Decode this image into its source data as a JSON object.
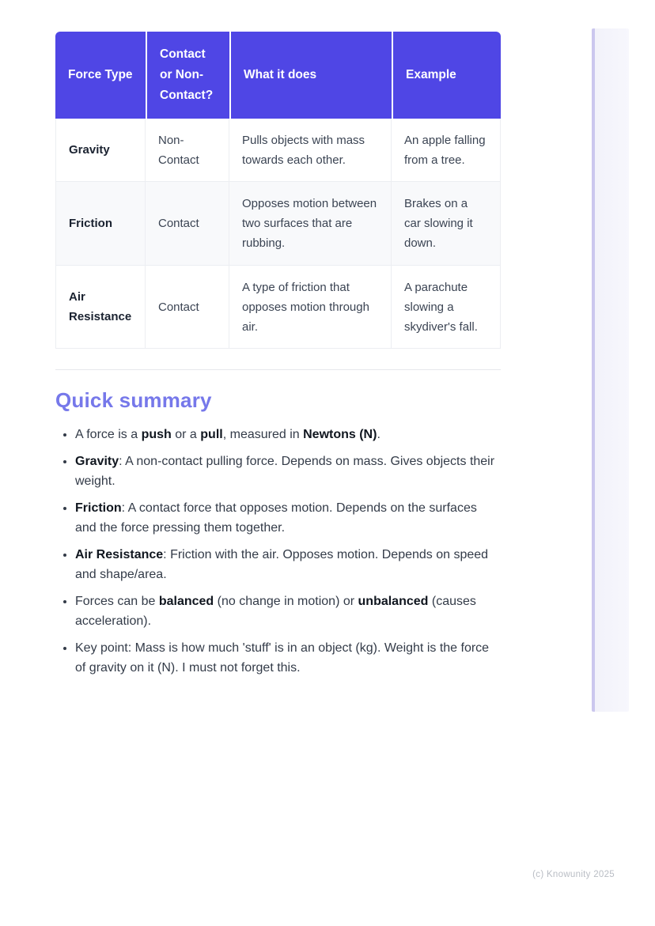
{
  "page": {
    "footer": "(c) Knowunity 2025"
  },
  "colors": {
    "table_header_bg": "#4f46e5",
    "heading_text": "#7678ea",
    "accent_panel": "#f4f4fb",
    "accent_border": "#cbc7ee",
    "shaded_row_bg": "#f8f9fb"
  },
  "table": {
    "columns": [
      "Force Type",
      "Contact or Non-Contact?",
      "What it does",
      "Example"
    ],
    "rows": [
      {
        "shaded": false,
        "cells": [
          [
            {
              "t": "Gravity",
              "b": true
            }
          ],
          [
            {
              "t": "Non-Contact"
            }
          ],
          [
            {
              "t": "Pulls objects with mass towards each other."
            }
          ],
          [
            {
              "t": "An apple falling from a tree."
            }
          ]
        ]
      },
      {
        "shaded": true,
        "cells": [
          [
            {
              "t": "Friction",
              "b": true
            }
          ],
          [
            {
              "t": "Contact"
            }
          ],
          [
            {
              "t": "Opposes motion between two surfaces that are rubbing."
            }
          ],
          [
            {
              "t": "Brakes on a car slowing it down."
            }
          ]
        ]
      },
      {
        "shaded": false,
        "cells": [
          [
            {
              "t": "Air Resistance",
              "b": true
            }
          ],
          [
            {
              "t": "Contact"
            }
          ],
          [
            {
              "t": "A type of friction that opposes motion through air."
            }
          ],
          [
            {
              "t": "A parachute slowing a skydiver's fall."
            }
          ]
        ]
      }
    ]
  },
  "summary": {
    "heading": "Quick summary",
    "bullets": [
      [
        {
          "t": "A force is a "
        },
        {
          "t": "push",
          "b": true
        },
        {
          "t": " or a "
        },
        {
          "t": "pull",
          "b": true
        },
        {
          "t": ", measured in "
        },
        {
          "t": "Newtons (N)",
          "b": true
        },
        {
          "t": "."
        }
      ],
      [
        {
          "t": "Gravity",
          "b": true
        },
        {
          "t": ": A non-contact pulling force. Depends on mass. Gives objects their weight."
        }
      ],
      [
        {
          "t": "Friction",
          "b": true
        },
        {
          "t": ": A contact force that opposes motion. Depends on the surfaces and the force pressing them together."
        }
      ],
      [
        {
          "t": "Air Resistance",
          "b": true
        },
        {
          "t": ": Friction with the air. Opposes motion. Depends on speed and shape/area."
        }
      ],
      [
        {
          "t": "Forces can be "
        },
        {
          "t": "balanced",
          "b": true
        },
        {
          "t": " (no change in motion) or "
        },
        {
          "t": "unbalanced",
          "b": true
        },
        {
          "t": " (causes acceleration)."
        }
      ],
      [
        {
          "t": "Key point: Mass is how much 'stuff' is in an object (kg). Weight is the force of gravity on it (N). I must not forget this."
        }
      ]
    ]
  }
}
